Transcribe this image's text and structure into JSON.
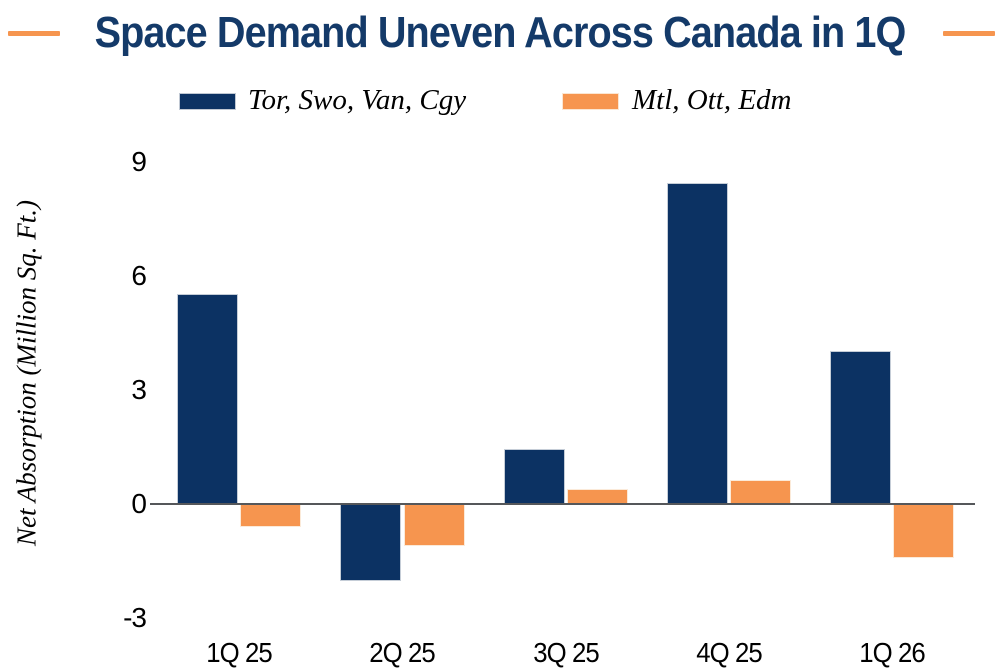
{
  "header": {
    "title": "Space Demand Uneven Across Canada in 1Q",
    "title_color": "#143a69",
    "accent_color": "#f6954f"
  },
  "chart_data": {
    "type": "bar",
    "title": "Space Demand Uneven Across Canada in 1Q",
    "categories": [
      "1Q 25",
      "2Q 25",
      "3Q 25",
      "4Q 25",
      "1Q 26"
    ],
    "series": [
      {
        "name": "Tor, Swo, Van, Cgy",
        "color": "#0c3263",
        "values": [
          5.5,
          -2.0,
          1.4,
          8.4,
          4.0
        ]
      },
      {
        "name": "Mtl, Ott, Edm",
        "color": "#f6954f",
        "values": [
          -0.6,
          -1.1,
          0.35,
          0.6,
          -1.4
        ]
      }
    ],
    "xlabel": "",
    "ylabel": "Net Absorption (Million Sq. Ft.)",
    "yticks": [
      9,
      6,
      3,
      0,
      -3
    ],
    "ylim": [
      -3,
      9.5
    ],
    "grid": false,
    "legend_position": "top",
    "axis_line_color": "#55575a"
  }
}
